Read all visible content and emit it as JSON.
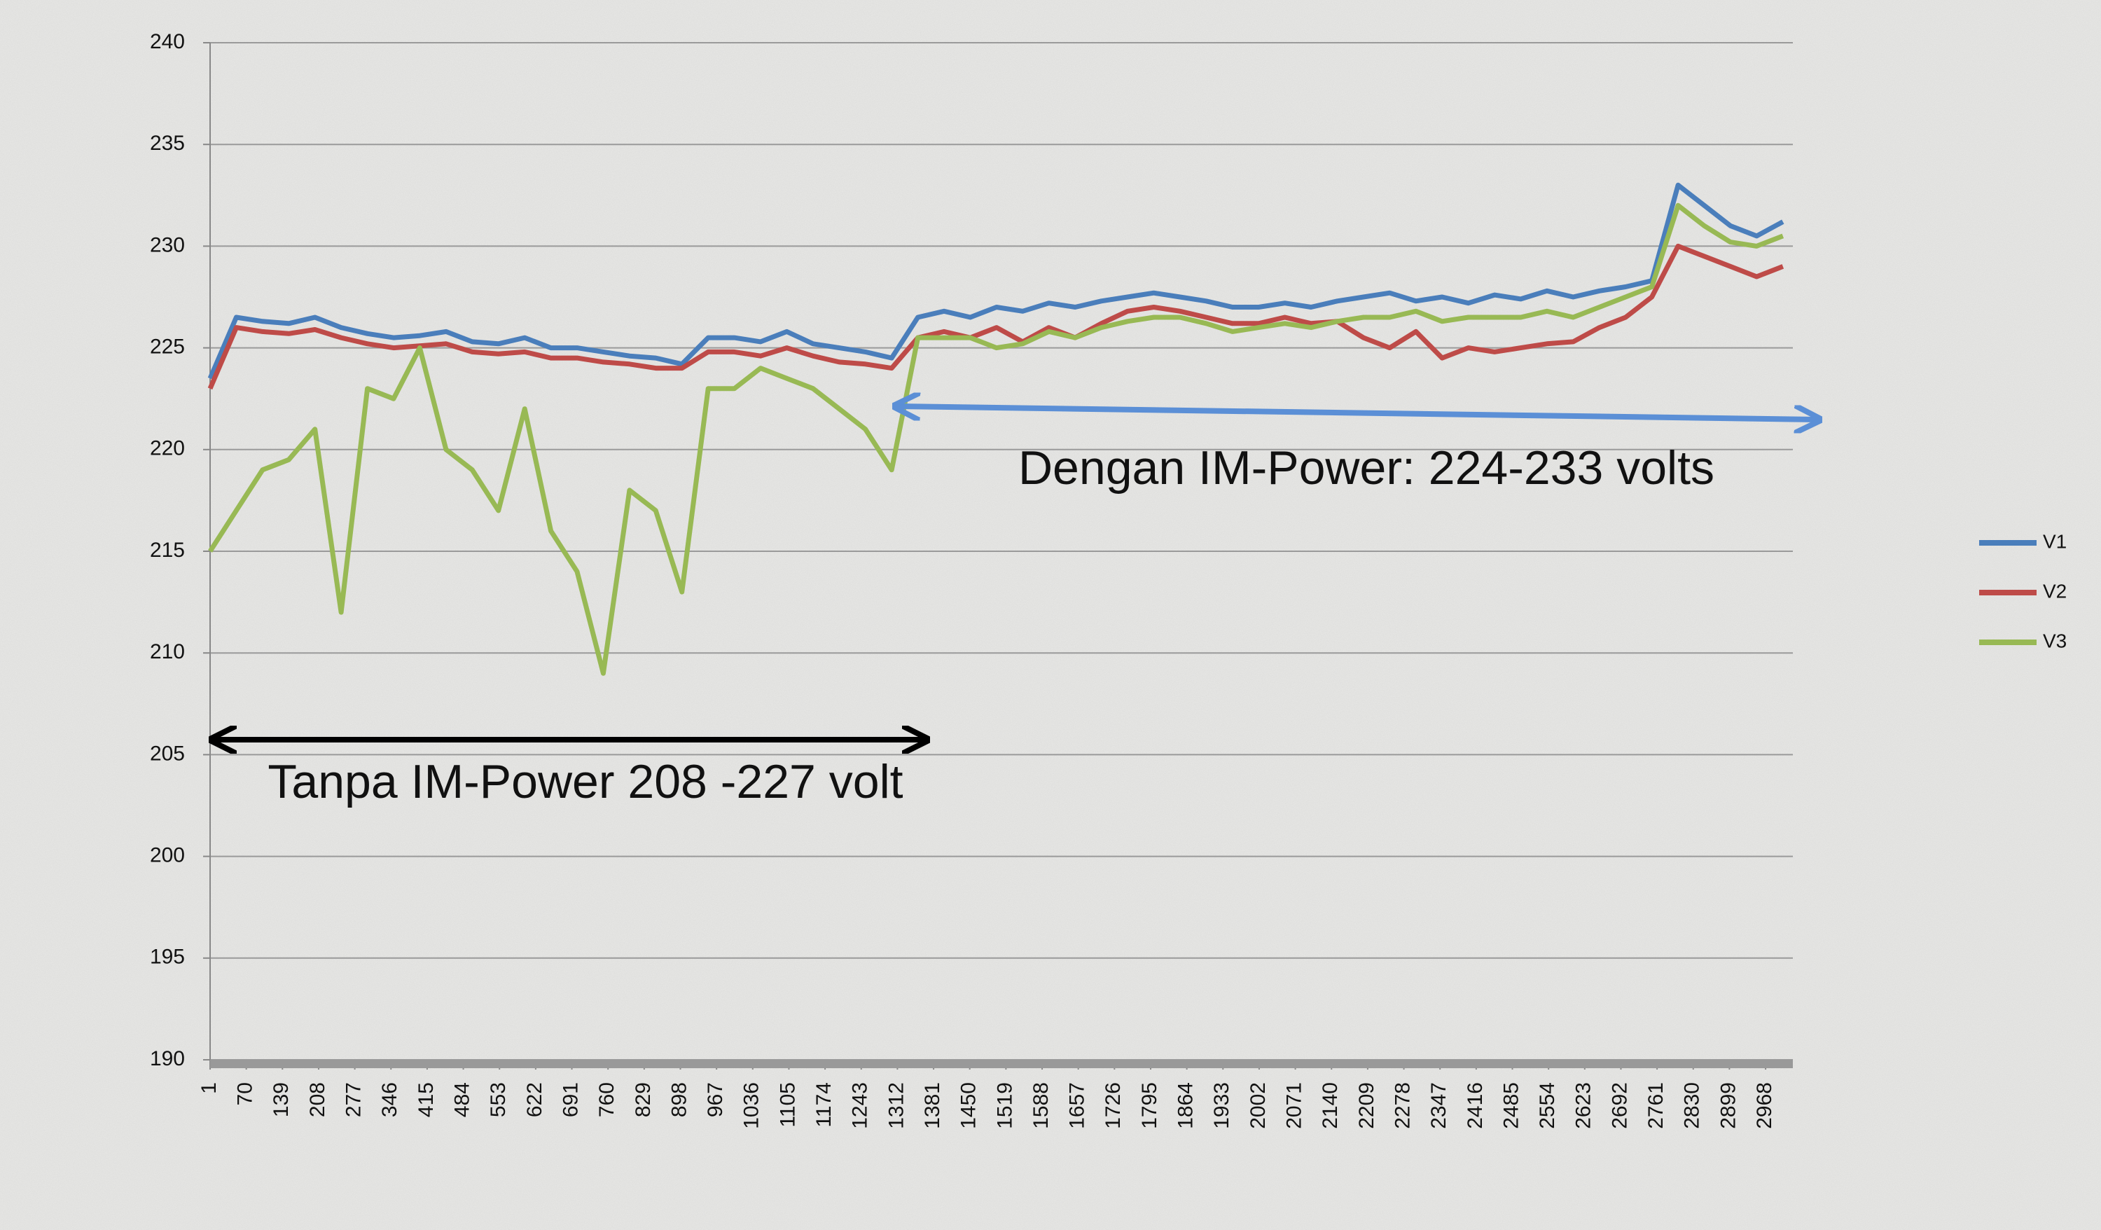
{
  "chart_data": {
    "type": "line",
    "x": [
      1,
      51,
      101,
      151,
      201,
      251,
      301,
      351,
      401,
      451,
      501,
      551,
      601,
      651,
      701,
      751,
      801,
      851,
      901,
      951,
      1001,
      1051,
      1101,
      1151,
      1201,
      1251,
      1301,
      1351,
      1401,
      1451,
      1501,
      1551,
      1601,
      1651,
      1701,
      1751,
      1801,
      1851,
      1901,
      1951,
      2001,
      2051,
      2101,
      2151,
      2201,
      2251,
      2301,
      2351,
      2401,
      2451,
      2501,
      2551,
      2601,
      2651,
      2701,
      2751,
      2801,
      2851,
      2901,
      2951,
      3001
    ],
    "series": [
      {
        "name": "V1",
        "color": "#4a7ebb",
        "values": [
          223.5,
          226.5,
          226.3,
          226.2,
          226.5,
          226,
          225.7,
          225.5,
          225.6,
          225.8,
          225.3,
          225.2,
          225.5,
          225,
          225,
          224.8,
          224.6,
          224.5,
          224.2,
          225.5,
          225.5,
          225.3,
          225.8,
          225.2,
          225,
          224.8,
          224.5,
          226.5,
          226.8,
          226.5,
          227,
          226.8,
          227.2,
          227,
          227.3,
          227.5,
          227.7,
          227.5,
          227.3,
          227,
          227,
          227.2,
          227,
          227.3,
          227.5,
          227.7,
          227.3,
          227.5,
          227.2,
          227.6,
          227.4,
          227.8,
          227.5,
          227.8,
          228,
          228.3,
          233,
          232,
          231,
          230.5,
          231.2
        ]
      },
      {
        "name": "V2",
        "color": "#be4b48",
        "values": [
          223,
          226,
          225.8,
          225.7,
          225.9,
          225.5,
          225.2,
          225,
          225.1,
          225.2,
          224.8,
          224.7,
          224.8,
          224.5,
          224.5,
          224.3,
          224.2,
          224,
          224,
          224.8,
          224.8,
          224.6,
          225,
          224.6,
          224.3,
          224.2,
          224,
          225.5,
          225.8,
          225.5,
          226,
          225.3,
          226,
          225.5,
          226.2,
          226.8,
          227,
          226.8,
          226.5,
          226.2,
          226.2,
          226.5,
          226.2,
          226.3,
          225.5,
          225,
          225.8,
          224.5,
          225,
          224.8,
          225,
          225.2,
          225.3,
          226,
          226.5,
          227.5,
          230,
          229.5,
          229,
          228.5,
          229
        ]
      },
      {
        "name": "V3",
        "color": "#98b954",
        "values": [
          215,
          217,
          219,
          219.5,
          221,
          212,
          223,
          222.5,
          225,
          220,
          219,
          217,
          222,
          216,
          214,
          209,
          218,
          217,
          213,
          223,
          223,
          224,
          223.5,
          223,
          222,
          221,
          219,
          225.5,
          225.5,
          225.5,
          225,
          225.2,
          225.8,
          225.5,
          226,
          226.3,
          226.5,
          226.5,
          226.2,
          225.8,
          226,
          226.2,
          226,
          226.3,
          226.5,
          226.5,
          226.8,
          226.3,
          226.5,
          226.5,
          226.5,
          226.8,
          226.5,
          227,
          227.5,
          228,
          232,
          231,
          230.2,
          230,
          230.5
        ]
      }
    ],
    "xlim": [
      1,
      3020
    ],
    "xticks": [
      1,
      70,
      139,
      208,
      277,
      346,
      415,
      484,
      553,
      622,
      691,
      760,
      829,
      898,
      967,
      1036,
      1105,
      1174,
      1243,
      1312,
      1381,
      1450,
      1519,
      1588,
      1657,
      1726,
      1795,
      1864,
      1933,
      2002,
      2071,
      2140,
      2209,
      2278,
      2347,
      2416,
      2485,
      2554,
      2623,
      2692,
      2761,
      2830,
      2899,
      2968
    ],
    "ylim": [
      190,
      240
    ],
    "yticks": [
      190,
      195,
      200,
      205,
      210,
      215,
      220,
      225,
      230,
      235,
      240
    ],
    "grid": true,
    "legend": "right",
    "annotations": [
      "Dengan IM-Power: 224-233 volts",
      "Tanpa IM-Power 208 -227 volt"
    ]
  }
}
